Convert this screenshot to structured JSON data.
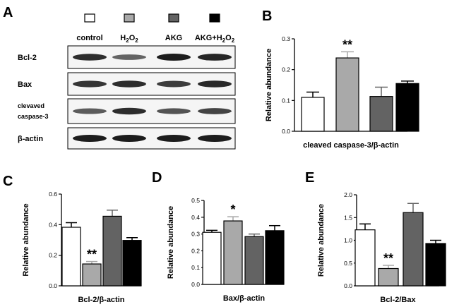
{
  "panel_letters": [
    "A",
    "B",
    "C",
    "D",
    "E"
  ],
  "colors": {
    "control": "#ffffff",
    "h2o2": "#a9a9a9",
    "akg": "#636363",
    "akg_h2o2": "#000000"
  },
  "western_blot": {
    "groups": [
      {
        "label": "control"
      },
      {
        "label": "H2O2",
        "base": "H",
        "sub1": "2",
        "mid": "O",
        "sub2": "2"
      },
      {
        "label": "AKG"
      },
      {
        "label": "AKG+H2O2",
        "base": "AKG+H",
        "sub1": "2",
        "mid": "O",
        "sub2": "2"
      }
    ],
    "blots": [
      {
        "label": "Bcl-2",
        "intensity": [
          0.9,
          0.55,
          1.0,
          0.95
        ]
      },
      {
        "label": "Bax",
        "intensity": [
          0.85,
          0.9,
          0.8,
          0.92
        ]
      },
      {
        "label_lines": [
          "clevaved",
          "caspase-3"
        ],
        "intensity": [
          0.6,
          0.9,
          0.65,
          0.75
        ]
      },
      {
        "label": "β-actin",
        "intensity": [
          1.0,
          1.0,
          1.0,
          1.0
        ]
      }
    ]
  },
  "chart_data": [
    {
      "panel": "B",
      "type": "bar",
      "categories": [
        "control",
        "H2O2",
        "AKG",
        "AKG+H2O2"
      ],
      "values": [
        0.11,
        0.238,
        0.113,
        0.155
      ],
      "errors": [
        0.017,
        0.02,
        0.03,
        0.008
      ],
      "significance": [
        "",
        "**",
        "",
        ""
      ],
      "xlabel": "cleaved caspase-3/β-actin",
      "ylabel": "Relative abundance",
      "ylim": [
        0,
        0.3
      ],
      "yticks": [
        "0.0",
        "0.1",
        "0.2",
        "0.3"
      ]
    },
    {
      "panel": "C",
      "type": "bar",
      "categories": [
        "control",
        "H2O2",
        "AKG",
        "AKG+H2O2"
      ],
      "values": [
        0.383,
        0.143,
        0.455,
        0.297
      ],
      "errors": [
        0.03,
        0.016,
        0.04,
        0.018
      ],
      "significance": [
        "",
        "**",
        "",
        ""
      ],
      "xlabel": "Bcl-2/β-actin",
      "ylabel": "Relative abundance",
      "ylim": [
        0,
        0.6
      ],
      "yticks": [
        "0.0",
        "0.2",
        "0.4",
        "0.6"
      ]
    },
    {
      "panel": "D",
      "type": "bar",
      "categories": [
        "control",
        "H2O2",
        "AKG",
        "AKG+H2O2"
      ],
      "values": [
        0.31,
        0.378,
        0.285,
        0.32
      ],
      "errors": [
        0.012,
        0.025,
        0.015,
        0.03
      ],
      "significance": [
        "",
        "*",
        "",
        ""
      ],
      "xlabel": "Bax/β-actin",
      "ylabel": "Relative abundance",
      "ylim": [
        0,
        0.5
      ],
      "yticks": [
        "0.0",
        "0.1",
        "0.2",
        "0.3",
        "0.4",
        "0.5"
      ]
    },
    {
      "panel": "E",
      "type": "bar",
      "categories": [
        "control",
        "H2O2",
        "AKG",
        "AKG+H2O2"
      ],
      "values": [
        1.23,
        0.38,
        1.61,
        0.93
      ],
      "errors": [
        0.13,
        0.07,
        0.2,
        0.07
      ],
      "significance": [
        "",
        "**",
        "",
        ""
      ],
      "xlabel": "Bcl-2/Bax",
      "ylabel": "Relative abundance",
      "ylim": [
        0,
        2.0
      ],
      "yticks": [
        "0.0",
        "0.5",
        "1.0",
        "1.5",
        "2.0"
      ]
    }
  ]
}
